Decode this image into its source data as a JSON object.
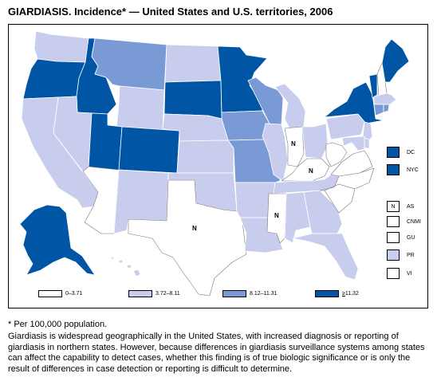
{
  "title": "GIARDIASIS. Incidence* — United States and U.S. territories, 2006",
  "colors": {
    "c0": "#ffffff",
    "c1": "#c8cdee",
    "c2": "#7a9ad6",
    "c3": "#0055a4",
    "border": "#ffffff",
    "outline": "#000000"
  },
  "legend": [
    {
      "label": "0–3.71",
      "class": "c0"
    },
    {
      "label": "3.72–8.11",
      "class": "c1"
    },
    {
      "label": "8.12–11.31",
      "class": "c2"
    },
    {
      "label_prefix": "≥",
      "label": "11.32",
      "class": "c3"
    }
  ],
  "side_boxes": [
    {
      "abbr": "DC",
      "class": "c3",
      "mark": ""
    },
    {
      "abbr": "NYC",
      "class": "c3",
      "mark": ""
    },
    {
      "abbr": "AS",
      "class": "c0",
      "mark": "N"
    },
    {
      "abbr": "CNMI",
      "class": "c0",
      "mark": ""
    },
    {
      "abbr": "GU",
      "class": "c0",
      "mark": ""
    },
    {
      "abbr": "PR",
      "class": "c1",
      "mark": ""
    },
    {
      "abbr": "VI",
      "class": "c0",
      "mark": ""
    }
  ],
  "no_data_mark": "N",
  "states": {
    "WA": "c1",
    "OR": "c3",
    "ID": "c3",
    "MT": "c2",
    "WY": "c1",
    "ND": "c1",
    "SD": "c3",
    "MN": "c3",
    "CA": "c1",
    "NV": "c1",
    "UT": "c3",
    "CO": "c3",
    "AZ": "c0",
    "NM": "c1",
    "NE": "c1",
    "KS": "c1",
    "OK": "c1",
    "TX": "c0",
    "IA": "c2",
    "MO": "c2",
    "AR": "c1",
    "LA": "c1",
    "WI": "c2",
    "MI": "c1",
    "IL": "c1",
    "IN": "c0",
    "OH": "c1",
    "KY": "c0",
    "TN": "c1",
    "MS": "c0",
    "AL": "c1",
    "GA": "c1",
    "FL": "c1",
    "SC": "c0",
    "NC": "c0",
    "VA": "c0",
    "WV": "c0",
    "PA": "c1",
    "NY": "c3",
    "VT": "c3",
    "NH": "c0",
    "ME": "c3",
    "MA": "c1",
    "CT": "c2",
    "RI": "c2",
    "NJ": "c1",
    "DE": "c1",
    "MD": "c1",
    "AK": "c3",
    "HI": "c1"
  },
  "no_data_states": [
    "IN",
    "KY",
    "MS",
    "TX"
  ],
  "footnote": "* Per 100,000 population.",
  "description": "Giardiasis is widespread geographically in the United States, with increased diagnosis or reporting of giardiasis in northern states. However, because differences in giardiasis surveillance systems among states can affect the capability to detect cases, whether this finding is of true biologic significance or is only the result of differences in case detection or reporting is difficult to determine."
}
